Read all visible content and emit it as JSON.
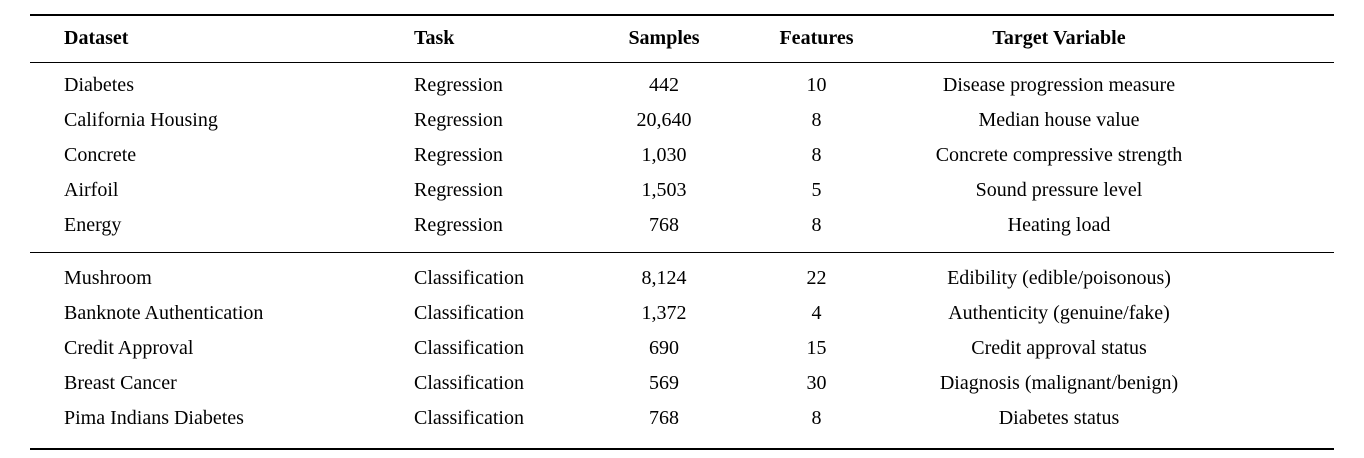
{
  "table": {
    "columns": [
      {
        "key": "dataset",
        "label": "Dataset",
        "align": "left"
      },
      {
        "key": "task",
        "label": "Task",
        "align": "left"
      },
      {
        "key": "samples",
        "label": "Samples",
        "align": "center"
      },
      {
        "key": "features",
        "label": "Features",
        "align": "center"
      },
      {
        "key": "target",
        "label": "Target Variable",
        "align": "center"
      }
    ],
    "groups": [
      {
        "name": "regression",
        "rows": [
          [
            "Diabetes",
            "Regression",
            "442",
            "10",
            "Disease progression measure"
          ],
          [
            "California Housing",
            "Regression",
            "20,640",
            "8",
            "Median house value"
          ],
          [
            "Concrete",
            "Regression",
            "1,030",
            "8",
            "Concrete compressive strength"
          ],
          [
            "Airfoil",
            "Regression",
            "1,503",
            "5",
            "Sound pressure level"
          ],
          [
            "Energy",
            "Regression",
            "768",
            "8",
            "Heating load"
          ]
        ]
      },
      {
        "name": "classification",
        "rows": [
          [
            "Mushroom",
            "Classification",
            "8,124",
            "22",
            "Edibility (edible/poisonous)"
          ],
          [
            "Banknote Authentication",
            "Classification",
            "1,372",
            "4",
            "Authenticity (genuine/fake)"
          ],
          [
            "Credit Approval",
            "Classification",
            "690",
            "15",
            "Credit approval status"
          ],
          [
            "Breast Cancer",
            "Classification",
            "569",
            "30",
            "Diagnosis (malignant/benign)"
          ],
          [
            "Pima Indians Diabetes",
            "Classification",
            "768",
            "8",
            "Diabetes status"
          ]
        ]
      }
    ]
  }
}
